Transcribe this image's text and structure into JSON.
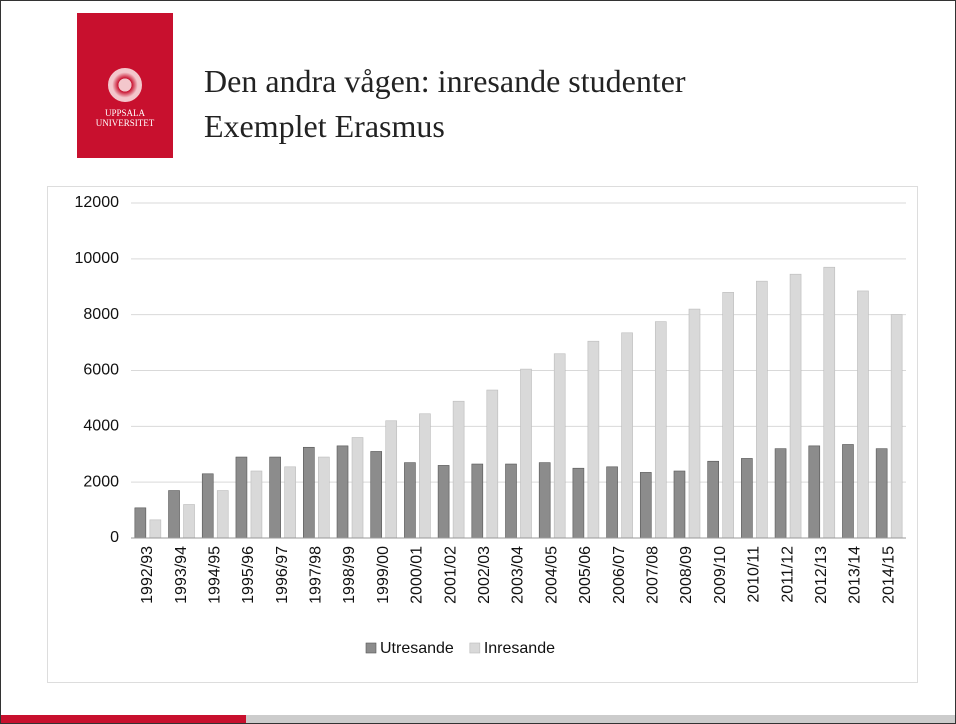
{
  "header": {
    "title_lines": [
      "Den andra vågen: inresande studenter",
      "Exemplet Erasmus"
    ],
    "logo_lines": [
      "UPPSALA",
      "UNIVERSITET"
    ]
  },
  "chart_data": {
    "type": "bar",
    "categories": [
      "1992/93",
      "1993/94",
      "1994/95",
      "1995/96",
      "1996/97",
      "1997/98",
      "1998/99",
      "1999/00",
      "2000/01",
      "2001/02",
      "2002/03",
      "2003/04",
      "2004/05",
      "2005/06",
      "2006/07",
      "2007/08",
      "2008/09",
      "2009/10",
      "2010/11",
      "2011/12",
      "2012/13",
      "2013/14",
      "2014/15"
    ],
    "series": [
      {
        "name": "Utresande",
        "color": "#8c8c8c",
        "values": [
          1080,
          1700,
          2300,
          2900,
          2900,
          3250,
          3300,
          3100,
          2700,
          2600,
          2650,
          2650,
          2700,
          2500,
          2550,
          2350,
          2400,
          2750,
          2850,
          3200,
          3300,
          3350,
          3200
        ]
      },
      {
        "name": "Inresande",
        "color": "#d9d9d9",
        "values": [
          650,
          1200,
          1700,
          2400,
          2550,
          2900,
          3600,
          4200,
          4450,
          4900,
          5300,
          6050,
          6600,
          7050,
          7350,
          7750,
          8200,
          8800,
          9200,
          9450,
          9700,
          8850,
          8000
        ]
      }
    ],
    "ylim": [
      0,
      12000
    ],
    "yticks": [
      0,
      2000,
      4000,
      6000,
      8000,
      10000,
      12000
    ],
    "grid": true,
    "legend": "bottom"
  }
}
